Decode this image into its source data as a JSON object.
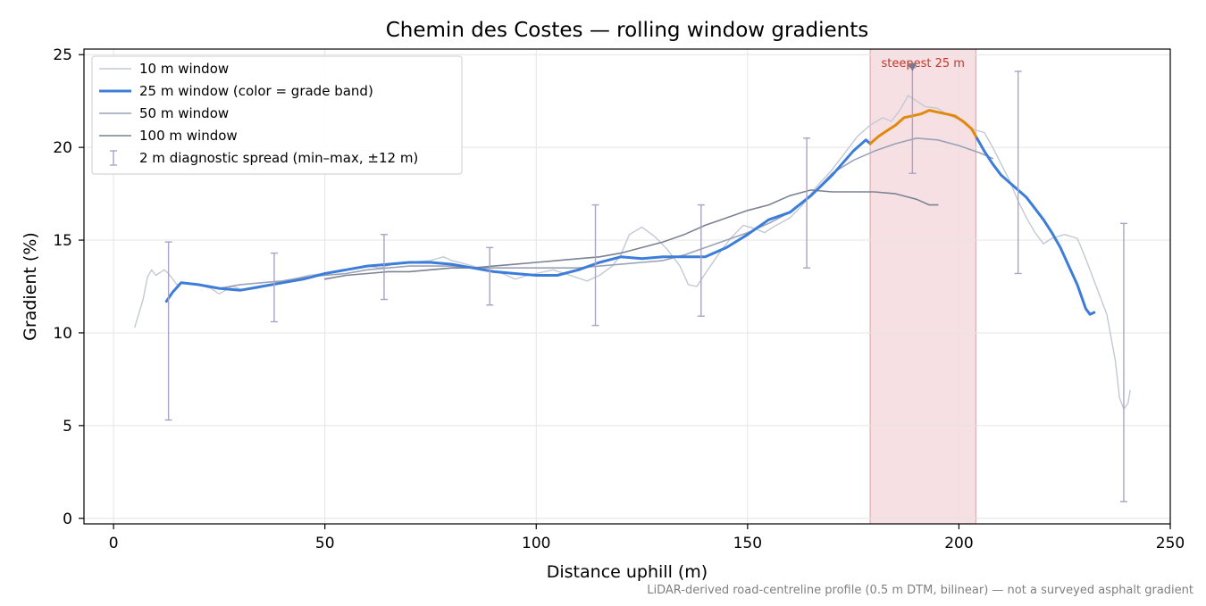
{
  "chart_data": {
    "type": "line",
    "title": "Chemin des Costes — rolling window gradients",
    "xlabel": "Distance uphill (m)",
    "ylabel": "Gradient (%)",
    "xlim": [
      -7,
      250
    ],
    "ylim": [
      -0.3,
      25.3
    ],
    "xticks": [
      0,
      50,
      100,
      150,
      200,
      250
    ],
    "yticks": [
      0,
      5,
      10,
      15,
      20,
      25
    ],
    "grid": true,
    "legend_position": "top-left",
    "footnote": "LiDAR-derived road-centreline profile (0.5 m DTM, bilinear) — not a surveyed asphalt gradient",
    "highlight": {
      "label": "steepest 25 m",
      "x_range": [
        179,
        204
      ],
      "color": "#f3d6d9",
      "label_color": "#c0392b",
      "marker_x": 189,
      "marker_y": 24.3
    },
    "grade_band_colors": {
      "steepest": "#e08a0b",
      "default": "#3c7dd9"
    },
    "series": [
      {
        "name": "10 m window",
        "color": "#c3c9d3",
        "width": 1.4,
        "points": [
          [
            5,
            10.3
          ],
          [
            7,
            11.8
          ],
          [
            8,
            13
          ],
          [
            9,
            13.4
          ],
          [
            10,
            13.1
          ],
          [
            12,
            13.4
          ],
          [
            13,
            13.2
          ],
          [
            15,
            12.6
          ],
          [
            17,
            12.7
          ],
          [
            20,
            12.6
          ],
          [
            23,
            12.4
          ],
          [
            25,
            12.1
          ],
          [
            28,
            12.5
          ],
          [
            31,
            12.3
          ],
          [
            34,
            12.4
          ],
          [
            37,
            12.6
          ],
          [
            40,
            12.8
          ],
          [
            43,
            12.9
          ],
          [
            46,
            13.1
          ],
          [
            50,
            13.2
          ],
          [
            55,
            13.4
          ],
          [
            60,
            13.6
          ],
          [
            63,
            13.5
          ],
          [
            66,
            13.7
          ],
          [
            70,
            13.8
          ],
          [
            75,
            13.9
          ],
          [
            78,
            14.1
          ],
          [
            80,
            13.9
          ],
          [
            85,
            13.6
          ],
          [
            88,
            13.4
          ],
          [
            92,
            13.2
          ],
          [
            95,
            12.9
          ],
          [
            98,
            13.1
          ],
          [
            100,
            13.2
          ],
          [
            104,
            13.4
          ],
          [
            108,
            13.1
          ],
          [
            112,
            12.8
          ],
          [
            115,
            13.1
          ],
          [
            118,
            13.6
          ],
          [
            120,
            14.2
          ],
          [
            122,
            15.3
          ],
          [
            125,
            15.7
          ],
          [
            128,
            15.2
          ],
          [
            131,
            14.5
          ],
          [
            134,
            13.6
          ],
          [
            136,
            12.6
          ],
          [
            138,
            12.5
          ],
          [
            140,
            13.2
          ],
          [
            143,
            14.2
          ],
          [
            146,
            15.1
          ],
          [
            149,
            15.8
          ],
          [
            152,
            15.6
          ],
          [
            154,
            15.4
          ],
          [
            156,
            15.7
          ],
          [
            160,
            16.2
          ],
          [
            163,
            16.9
          ],
          [
            166,
            17.8
          ],
          [
            170,
            18.8
          ],
          [
            173,
            19.7
          ],
          [
            176,
            20.6
          ],
          [
            179,
            21.2
          ],
          [
            182,
            21.6
          ],
          [
            184,
            21.4
          ],
          [
            186,
            22
          ],
          [
            188,
            22.8
          ],
          [
            190,
            22.5
          ],
          [
            192,
            22.2
          ],
          [
            195,
            22.1
          ],
          [
            197,
            21.8
          ],
          [
            200,
            21.5
          ],
          [
            203,
            21
          ],
          [
            206,
            20.8
          ],
          [
            208,
            20
          ],
          [
            210,
            19.1
          ],
          [
            212,
            18.2
          ],
          [
            214,
            17.1
          ],
          [
            216,
            16.2
          ],
          [
            218,
            15.4
          ],
          [
            220,
            14.8
          ],
          [
            222,
            15.1
          ],
          [
            225,
            15.3
          ],
          [
            228,
            15.1
          ],
          [
            230,
            14
          ],
          [
            232,
            12.8
          ],
          [
            235,
            11
          ],
          [
            237,
            8.5
          ],
          [
            238,
            6.5
          ],
          [
            239,
            5.9
          ],
          [
            240,
            6.2
          ],
          [
            240.5,
            6.9
          ]
        ]
      },
      {
        "name": "25 m window (color = grade band)",
        "color": "#3c7dd9",
        "width": 3,
        "points": [
          [
            12.5,
            11.7
          ],
          [
            14,
            12.2
          ],
          [
            16,
            12.7
          ],
          [
            20,
            12.6
          ],
          [
            25,
            12.4
          ],
          [
            30,
            12.3
          ],
          [
            35,
            12.5
          ],
          [
            40,
            12.7
          ],
          [
            45,
            12.9
          ],
          [
            50,
            13.2
          ],
          [
            55,
            13.4
          ],
          [
            60,
            13.6
          ],
          [
            65,
            13.7
          ],
          [
            70,
            13.8
          ],
          [
            75,
            13.8
          ],
          [
            80,
            13.7
          ],
          [
            85,
            13.5
          ],
          [
            90,
            13.3
          ],
          [
            95,
            13.2
          ],
          [
            100,
            13.1
          ],
          [
            105,
            13.1
          ],
          [
            110,
            13.4
          ],
          [
            115,
            13.8
          ],
          [
            120,
            14.1
          ],
          [
            125,
            14
          ],
          [
            130,
            14.1
          ],
          [
            135,
            14.1
          ],
          [
            140,
            14.1
          ],
          [
            145,
            14.6
          ],
          [
            150,
            15.3
          ],
          [
            155,
            16.1
          ],
          [
            160,
            16.5
          ],
          [
            165,
            17.4
          ],
          [
            170,
            18.5
          ],
          [
            175,
            19.8
          ],
          [
            178,
            20.4
          ],
          [
            179,
            20.2
          ]
        ]
      },
      {
        "name": "steepest 25 m segment",
        "color": "#e08a0b",
        "width": 3,
        "legend": false,
        "points": [
          [
            179,
            20.2
          ],
          [
            181,
            20.6
          ],
          [
            183,
            20.9
          ],
          [
            185,
            21.2
          ],
          [
            187,
            21.6
          ],
          [
            189,
            21.7
          ],
          [
            191,
            21.8
          ],
          [
            193,
            22
          ],
          [
            195,
            21.9
          ],
          [
            197,
            21.8
          ],
          [
            199,
            21.7
          ],
          [
            201,
            21.4
          ],
          [
            203,
            21
          ],
          [
            204,
            20.6
          ]
        ]
      },
      {
        "name": "25 m window tail",
        "color": "#3c7dd9",
        "width": 3,
        "legend": false,
        "points": [
          [
            204,
            20.6
          ],
          [
            206,
            19.8
          ],
          [
            208,
            19.1
          ],
          [
            210,
            18.5
          ],
          [
            213,
            17.9
          ],
          [
            216,
            17.3
          ],
          [
            218,
            16.7
          ],
          [
            220,
            16.1
          ],
          [
            222,
            15.4
          ],
          [
            224,
            14.6
          ],
          [
            226,
            13.6
          ],
          [
            228,
            12.6
          ],
          [
            230,
            11.3
          ],
          [
            231,
            11.0
          ],
          [
            232,
            11.1
          ]
        ]
      },
      {
        "name": "50 m window",
        "color": "#9aa2b6",
        "width": 1.6,
        "points": [
          [
            25,
            12.4
          ],
          [
            30,
            12.6
          ],
          [
            35,
            12.7
          ],
          [
            40,
            12.8
          ],
          [
            45,
            13
          ],
          [
            50,
            13.1
          ],
          [
            55,
            13.2
          ],
          [
            60,
            13.4
          ],
          [
            65,
            13.5
          ],
          [
            70,
            13.6
          ],
          [
            75,
            13.6
          ],
          [
            80,
            13.6
          ],
          [
            85,
            13.5
          ],
          [
            90,
            13.5
          ],
          [
            95,
            13.5
          ],
          [
            100,
            13.5
          ],
          [
            105,
            13.5
          ],
          [
            110,
            13.5
          ],
          [
            115,
            13.6
          ],
          [
            120,
            13.7
          ],
          [
            125,
            13.8
          ],
          [
            130,
            13.9
          ],
          [
            135,
            14.2
          ],
          [
            140,
            14.6
          ],
          [
            145,
            15
          ],
          [
            150,
            15.4
          ],
          [
            155,
            15.9
          ],
          [
            160,
            16.5
          ],
          [
            165,
            17.4
          ],
          [
            170,
            18.6
          ],
          [
            175,
            19.3
          ],
          [
            180,
            19.8
          ],
          [
            185,
            20.2
          ],
          [
            190,
            20.5
          ],
          [
            195,
            20.4
          ],
          [
            200,
            20.1
          ],
          [
            205,
            19.7
          ],
          [
            208,
            19.4
          ]
        ]
      },
      {
        "name": "100 m window",
        "color": "#7b8293",
        "width": 1.6,
        "points": [
          [
            50,
            12.9
          ],
          [
            55,
            13.1
          ],
          [
            60,
            13.2
          ],
          [
            65,
            13.3
          ],
          [
            70,
            13.3
          ],
          [
            75,
            13.4
          ],
          [
            80,
            13.5
          ],
          [
            85,
            13.5
          ],
          [
            90,
            13.6
          ],
          [
            95,
            13.7
          ],
          [
            100,
            13.8
          ],
          [
            105,
            13.9
          ],
          [
            110,
            14
          ],
          [
            115,
            14.1
          ],
          [
            120,
            14.3
          ],
          [
            125,
            14.6
          ],
          [
            130,
            14.9
          ],
          [
            135,
            15.3
          ],
          [
            140,
            15.8
          ],
          [
            145,
            16.2
          ],
          [
            150,
            16.6
          ],
          [
            155,
            16.9
          ],
          [
            160,
            17.4
          ],
          [
            165,
            17.7
          ],
          [
            170,
            17.6
          ],
          [
            175,
            17.6
          ],
          [
            180,
            17.6
          ],
          [
            185,
            17.5
          ],
          [
            190,
            17.2
          ],
          [
            193,
            16.9
          ],
          [
            195,
            16.9
          ]
        ]
      }
    ],
    "errorbars": {
      "name": "2 m diagnostic spread (min–max, ±12 m)",
      "color": "#a8a4c4",
      "bars": [
        {
          "x": 13,
          "low": 5.3,
          "high": 14.9
        },
        {
          "x": 38,
          "low": 10.6,
          "high": 14.3
        },
        {
          "x": 64,
          "low": 11.8,
          "high": 15.3
        },
        {
          "x": 89,
          "low": 11.5,
          "high": 14.6
        },
        {
          "x": 114,
          "low": 10.4,
          "high": 16.9
        },
        {
          "x": 139,
          "low": 10.9,
          "high": 16.9
        },
        {
          "x": 164,
          "low": 13.5,
          "high": 20.5
        },
        {
          "x": 189,
          "low": 18.6,
          "high": 24.3
        },
        {
          "x": 214,
          "low": 13.2,
          "high": 24.1
        },
        {
          "x": 239,
          "low": 0.9,
          "high": 15.9
        }
      ]
    }
  }
}
